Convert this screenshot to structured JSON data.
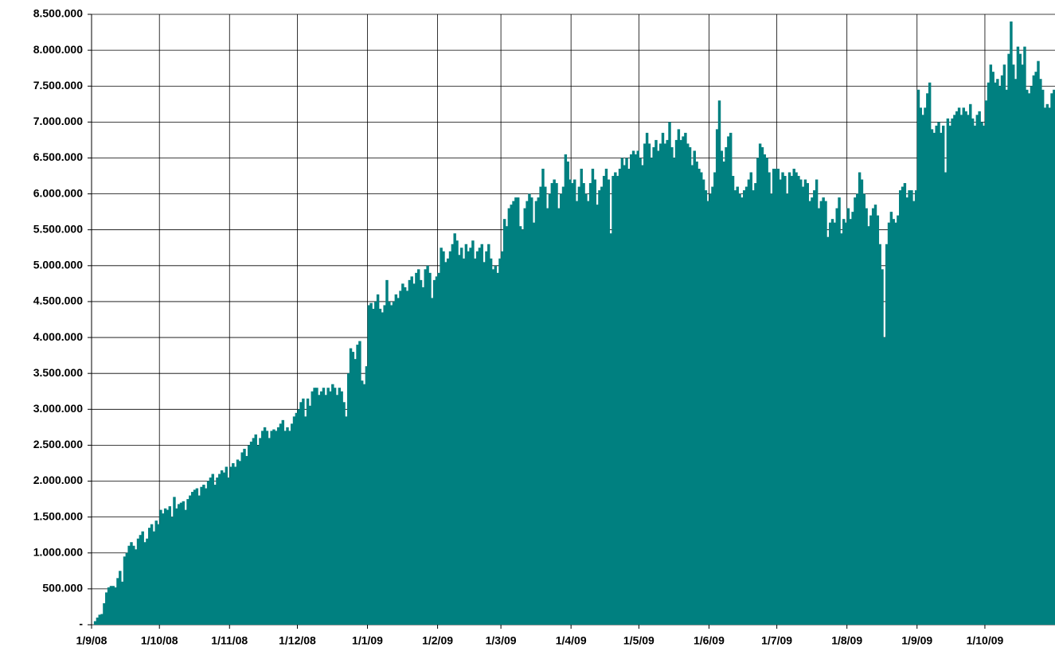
{
  "chart_data": {
    "type": "bar",
    "color": "#008080",
    "grid": true,
    "ylim": [
      0,
      8500000
    ],
    "yticks": [
      {
        "value": 0,
        "label": "-"
      },
      {
        "value": 500000,
        "label": "500.000"
      },
      {
        "value": 1000000,
        "label": "1.000.000"
      },
      {
        "value": 1500000,
        "label": "1.500.000"
      },
      {
        "value": 2000000,
        "label": "2.000.000"
      },
      {
        "value": 2500000,
        "label": "2.500.000"
      },
      {
        "value": 3000000,
        "label": "3.000.000"
      },
      {
        "value": 3500000,
        "label": "3.500.000"
      },
      {
        "value": 4000000,
        "label": "4.000.000"
      },
      {
        "value": 4500000,
        "label": "4.500.000"
      },
      {
        "value": 5000000,
        "label": "5.000.000"
      },
      {
        "value": 5500000,
        "label": "5.500.000"
      },
      {
        "value": 6000000,
        "label": "6.000.000"
      },
      {
        "value": 6500000,
        "label": "6.500.000"
      },
      {
        "value": 7000000,
        "label": "7.000.000"
      },
      {
        "value": 7500000,
        "label": "7.500.000"
      },
      {
        "value": 8000000,
        "label": "8.000.000"
      },
      {
        "value": 8500000,
        "label": "8.500.000"
      }
    ],
    "categories": [
      "1/9/08",
      null,
      null,
      null,
      null,
      null,
      null,
      null,
      null,
      null,
      null,
      null,
      null,
      null,
      null,
      null,
      null,
      null,
      null,
      null,
      null,
      null,
      null,
      null,
      null,
      null,
      null,
      null,
      null,
      null,
      "1/10/08",
      null,
      null,
      null,
      null,
      null,
      null,
      null,
      null,
      null,
      null,
      null,
      null,
      null,
      null,
      null,
      null,
      null,
      null,
      null,
      null,
      null,
      null,
      null,
      null,
      null,
      null,
      null,
      null,
      null,
      null,
      "1/11/08",
      null,
      null,
      null,
      null,
      null,
      null,
      null,
      null,
      null,
      null,
      null,
      null,
      null,
      null,
      null,
      null,
      null,
      null,
      null,
      null,
      null,
      null,
      null,
      null,
      null,
      null,
      null,
      null,
      null,
      "1/12/08",
      null,
      null,
      null,
      null,
      null,
      null,
      null,
      null,
      null,
      null,
      null,
      null,
      null,
      null,
      null,
      null,
      null,
      null,
      null,
      null,
      null,
      null,
      null,
      null,
      null,
      null,
      null,
      null,
      null,
      null,
      "1/1/09",
      null,
      null,
      null,
      null,
      null,
      null,
      null,
      null,
      null,
      null,
      null,
      null,
      null,
      null,
      null,
      null,
      null,
      null,
      null,
      null,
      null,
      null,
      null,
      null,
      null,
      null,
      null,
      null,
      null,
      null,
      "1/2/09",
      null,
      null,
      null,
      null,
      null,
      null,
      null,
      null,
      null,
      null,
      null,
      null,
      null,
      null,
      null,
      null,
      null,
      null,
      null,
      null,
      null,
      null,
      null,
      null,
      null,
      null,
      null,
      "1/3/09",
      null,
      null,
      null,
      null,
      null,
      null,
      null,
      null,
      null,
      null,
      null,
      null,
      null,
      null,
      null,
      null,
      null,
      null,
      null,
      null,
      null,
      null,
      null,
      null,
      null,
      null,
      null,
      null,
      null,
      null,
      "1/4/09",
      null,
      null,
      null,
      null,
      null,
      null,
      null,
      null,
      null,
      null,
      null,
      null,
      null,
      null,
      null,
      null,
      null,
      null,
      null,
      null,
      null,
      null,
      null,
      null,
      null,
      null,
      null,
      null,
      null,
      "1/5/09",
      null,
      null,
      null,
      null,
      null,
      null,
      null,
      null,
      null,
      null,
      null,
      null,
      null,
      null,
      null,
      null,
      null,
      null,
      null,
      null,
      null,
      null,
      null,
      null,
      null,
      null,
      null,
      null,
      null,
      null,
      "1/6/09",
      null,
      null,
      null,
      null,
      null,
      null,
      null,
      null,
      null,
      null,
      null,
      null,
      null,
      null,
      null,
      null,
      null,
      null,
      null,
      null,
      null,
      null,
      null,
      null,
      null,
      null,
      null,
      null,
      null,
      "1/7/09",
      null,
      null,
      null,
      null,
      null,
      null,
      null,
      null,
      null,
      null,
      null,
      null,
      null,
      null,
      null,
      null,
      null,
      null,
      null,
      null,
      null,
      null,
      null,
      null,
      null,
      null,
      null,
      null,
      null,
      null,
      "1/8/09",
      null,
      null,
      null,
      null,
      null,
      null,
      null,
      null,
      null,
      null,
      null,
      null,
      null,
      null,
      null,
      null,
      null,
      null,
      null,
      null,
      null,
      null,
      null,
      null,
      null,
      null,
      null,
      null,
      null,
      null,
      "1/9/09",
      null,
      null,
      null,
      null,
      null,
      null,
      null,
      null,
      null,
      null,
      null,
      null,
      null,
      null,
      null,
      null,
      null,
      null,
      null,
      null,
      null,
      null,
      null,
      null,
      null,
      null,
      null,
      null,
      null,
      "1/10/09",
      null,
      null,
      null,
      null,
      null,
      null,
      null,
      null,
      null,
      null,
      null,
      null,
      null,
      null,
      null,
      null,
      null,
      null,
      null,
      null,
      null,
      null,
      null,
      null,
      null,
      null,
      null,
      null,
      null,
      null
    ],
    "values": [
      0,
      50000,
      100000,
      140000,
      150000,
      300000,
      450000,
      520000,
      540000,
      540000,
      520000,
      650000,
      750000,
      600000,
      950000,
      1000000,
      1100000,
      1150000,
      1100000,
      1050000,
      1200000,
      1250000,
      1300000,
      1150000,
      1200000,
      1350000,
      1400000,
      1300000,
      1450000,
      1400000,
      1600000,
      1550000,
      1620000,
      1600000,
      1650000,
      1500000,
      1780000,
      1620000,
      1680000,
      1700000,
      1720000,
      1600000,
      1750000,
      1800000,
      1850000,
      1880000,
      1900000,
      1800000,
      1920000,
      1950000,
      1900000,
      2000000,
      2050000,
      2100000,
      1950000,
      2050000,
      2100000,
      2150000,
      2120000,
      2200000,
      2050000,
      2200000,
      2250000,
      2200000,
      2300000,
      2280000,
      2400000,
      2450000,
      2350000,
      2500000,
      2550000,
      2600000,
      2650000,
      2500000,
      2600000,
      2700000,
      2750000,
      2700000,
      2600000,
      2700000,
      2720000,
      2700000,
      2750000,
      2800000,
      2850000,
      2700000,
      2750000,
      2700000,
      2800000,
      2900000,
      2950000,
      3000000,
      3100000,
      3150000,
      2900000,
      3150000,
      3050000,
      3250000,
      3300000,
      3300000,
      3200000,
      3250000,
      3300000,
      3200000,
      3300000,
      3250000,
      3350000,
      3300000,
      3200000,
      3300000,
      3250000,
      3100000,
      2900000,
      3500000,
      3850000,
      3800000,
      3700000,
      3900000,
      3950000,
      3400000,
      3350000,
      3600000,
      4450000,
      4480000,
      4400000,
      4500000,
      4600000,
      4400000,
      4350000,
      4450000,
      4800000,
      4500000,
      4450000,
      4500000,
      4600000,
      4550000,
      4650000,
      4750000,
      4700000,
      4650000,
      4800000,
      4850000,
      4750000,
      4900000,
      4950000,
      4800000,
      4700000,
      4950000,
      5000000,
      4900000,
      4550000,
      4800000,
      4850000,
      4900000,
      5250000,
      5200000,
      5050000,
      5100000,
      5200000,
      5300000,
      5450000,
      5350000,
      5150000,
      5250000,
      5100000,
      5300000,
      5200000,
      5250000,
      5350000,
      5100000,
      5200000,
      5250000,
      5300000,
      5050000,
      5200000,
      5300000,
      5100000,
      4950000,
      5000000,
      4900000,
      5100000,
      5200000,
      5650000,
      5550000,
      5800000,
      5850000,
      5900000,
      5950000,
      5950000,
      5550000,
      5500000,
      5800000,
      5900000,
      6000000,
      5950000,
      5600000,
      5900000,
      5950000,
      6100000,
      6350000,
      6100000,
      5800000,
      6000000,
      6150000,
      6200000,
      6150000,
      5800000,
      6000000,
      6100000,
      6550000,
      6450000,
      6200000,
      6150000,
      6200000,
      5900000,
      6100000,
      6350000,
      6150000,
      6000000,
      5900000,
      6150000,
      6350000,
      6200000,
      5850000,
      6050000,
      6100000,
      6250000,
      6350000,
      6200000,
      5450000,
      6250000,
      6300000,
      6250000,
      6350000,
      6500000,
      6400000,
      6500000,
      6350000,
      6550000,
      6600000,
      6550000,
      6600000,
      6500000,
      6400000,
      6700000,
      6850000,
      6700000,
      6500000,
      6650000,
      6750000,
      6600000,
      6700000,
      6850000,
      6700000,
      6750000,
      7000000,
      6650000,
      6500000,
      6750000,
      6900000,
      6750000,
      6800000,
      6850000,
      6700000,
      6650000,
      6400000,
      6600000,
      6450000,
      6350000,
      6300000,
      6200000,
      6050000,
      5900000,
      6000000,
      6100000,
      6300000,
      6900000,
      7300000,
      6600000,
      6450000,
      6650000,
      6800000,
      6850000,
      6250000,
      6050000,
      6100000,
      6000000,
      5950000,
      6050000,
      6100000,
      6200000,
      6300000,
      6050000,
      6150000,
      6500000,
      6700000,
      6650000,
      6550000,
      6500000,
      6300000,
      6000000,
      6350000,
      6350000,
      6350000,
      6200000,
      6300000,
      6250000,
      6000000,
      6300000,
      6250000,
      6350000,
      6300000,
      6250000,
      6200000,
      6100000,
      6200000,
      6150000,
      5900000,
      5950000,
      6050000,
      6200000,
      5800000,
      5900000,
      5950000,
      5900000,
      5400000,
      5600000,
      5650000,
      5600000,
      5800000,
      5950000,
      5450000,
      5650000,
      5600000,
      5800000,
      5650000,
      5750000,
      5950000,
      6000000,
      6300000,
      6200000,
      6000000,
      5800000,
      5550000,
      5700000,
      5800000,
      5850000,
      5700000,
      5300000,
      4950000,
      4000000,
      5300000,
      5600000,
      5750000,
      5650000,
      5600000,
      5700000,
      6050000,
      6100000,
      6150000,
      5950000,
      6050000,
      6050000,
      5900000,
      6050000,
      7450000,
      7200000,
      7100000,
      7200000,
      7400000,
      7550000,
      6900000,
      6850000,
      6950000,
      7000000,
      6850000,
      6950000,
      6300000,
      7050000,
      6950000,
      7050000,
      7100000,
      7150000,
      7200000,
      7100000,
      7200000,
      7150000,
      7100000,
      7250000,
      7050000,
      6950000,
      7100000,
      7150000,
      7000000,
      6950000,
      7300000,
      7550000,
      7800000,
      7700000,
      7550000,
      7600000,
      7500000,
      7650000,
      7800000,
      7450000,
      7950000,
      8400000,
      7800000,
      7600000,
      8050000,
      7950000,
      7800000,
      8050000,
      7450000,
      7400000,
      7500000,
      7650000,
      7700000,
      7850000,
      7600000,
      7450000,
      7200000,
      7250000,
      7200000,
      7400000,
      7450000
    ]
  }
}
